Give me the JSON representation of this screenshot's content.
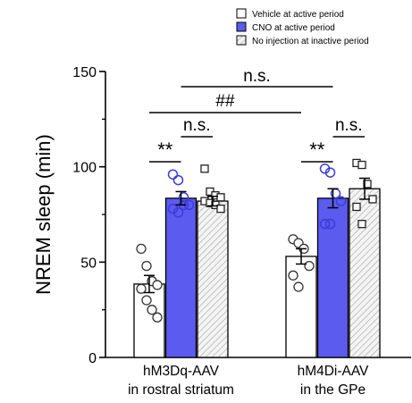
{
  "chart_data": {
    "type": "bar",
    "ylabel": "NREM sleep (min)",
    "ylim": [
      0,
      150
    ],
    "yticks": [
      0,
      50,
      100,
      150
    ],
    "colors": {
      "vehicle": "#ffffff",
      "cno": "#5b5bf0",
      "noinj": "#f2f2f2",
      "axis": "#000000",
      "cno_marker": "#3c3cd8"
    },
    "groups": [
      {
        "line1": "hM3Dq-AAV",
        "line2": "in rostral striatum"
      },
      {
        "line1": "hM4Di-AAV",
        "line2": "in the GPe"
      }
    ],
    "series": [
      {
        "name": "Vehicle at active period",
        "key": "vehicle",
        "values": [
          38.5,
          53
        ],
        "errors": [
          4.5,
          4
        ],
        "points": [
          [
            57,
            48,
            40,
            38,
            36,
            30,
            25,
            21
          ],
          [
            62,
            60,
            57,
            48,
            43,
            37
          ]
        ]
      },
      {
        "name": "CNO at active period",
        "key": "cno",
        "values": [
          83.5,
          83.5
        ],
        "errors": [
          3.5,
          5
        ],
        "points": [
          [
            96,
            93,
            84,
            80,
            78,
            76,
            80
          ],
          [
            99,
            97,
            86,
            82,
            70,
            70
          ]
        ]
      },
      {
        "name": "No injection at inactive period",
        "key": "noinj",
        "values": [
          82,
          88.5
        ],
        "errors": [
          2.5,
          5.5
        ],
        "points": [
          [
            99,
            87,
            85,
            84,
            82,
            81,
            80,
            78
          ],
          [
            102,
            101,
            91,
            83,
            79,
            70
          ]
        ]
      }
    ],
    "annotations": [
      {
        "text": "**",
        "between": [
          [
            0,
            0
          ],
          [
            0,
            1
          ]
        ]
      },
      {
        "text": "n.s.",
        "between": [
          [
            0,
            1
          ],
          [
            0,
            2
          ]
        ]
      },
      {
        "text": "**",
        "between": [
          [
            1,
            0
          ],
          [
            1,
            1
          ]
        ]
      },
      {
        "text": "n.s.",
        "between": [
          [
            1,
            1
          ],
          [
            1,
            2
          ]
        ]
      },
      {
        "text": "##",
        "between": [
          [
            0,
            0
          ],
          [
            1,
            0
          ]
        ]
      },
      {
        "text": "n.s.",
        "between": [
          [
            0,
            1
          ],
          [
            1,
            1
          ]
        ]
      }
    ]
  }
}
